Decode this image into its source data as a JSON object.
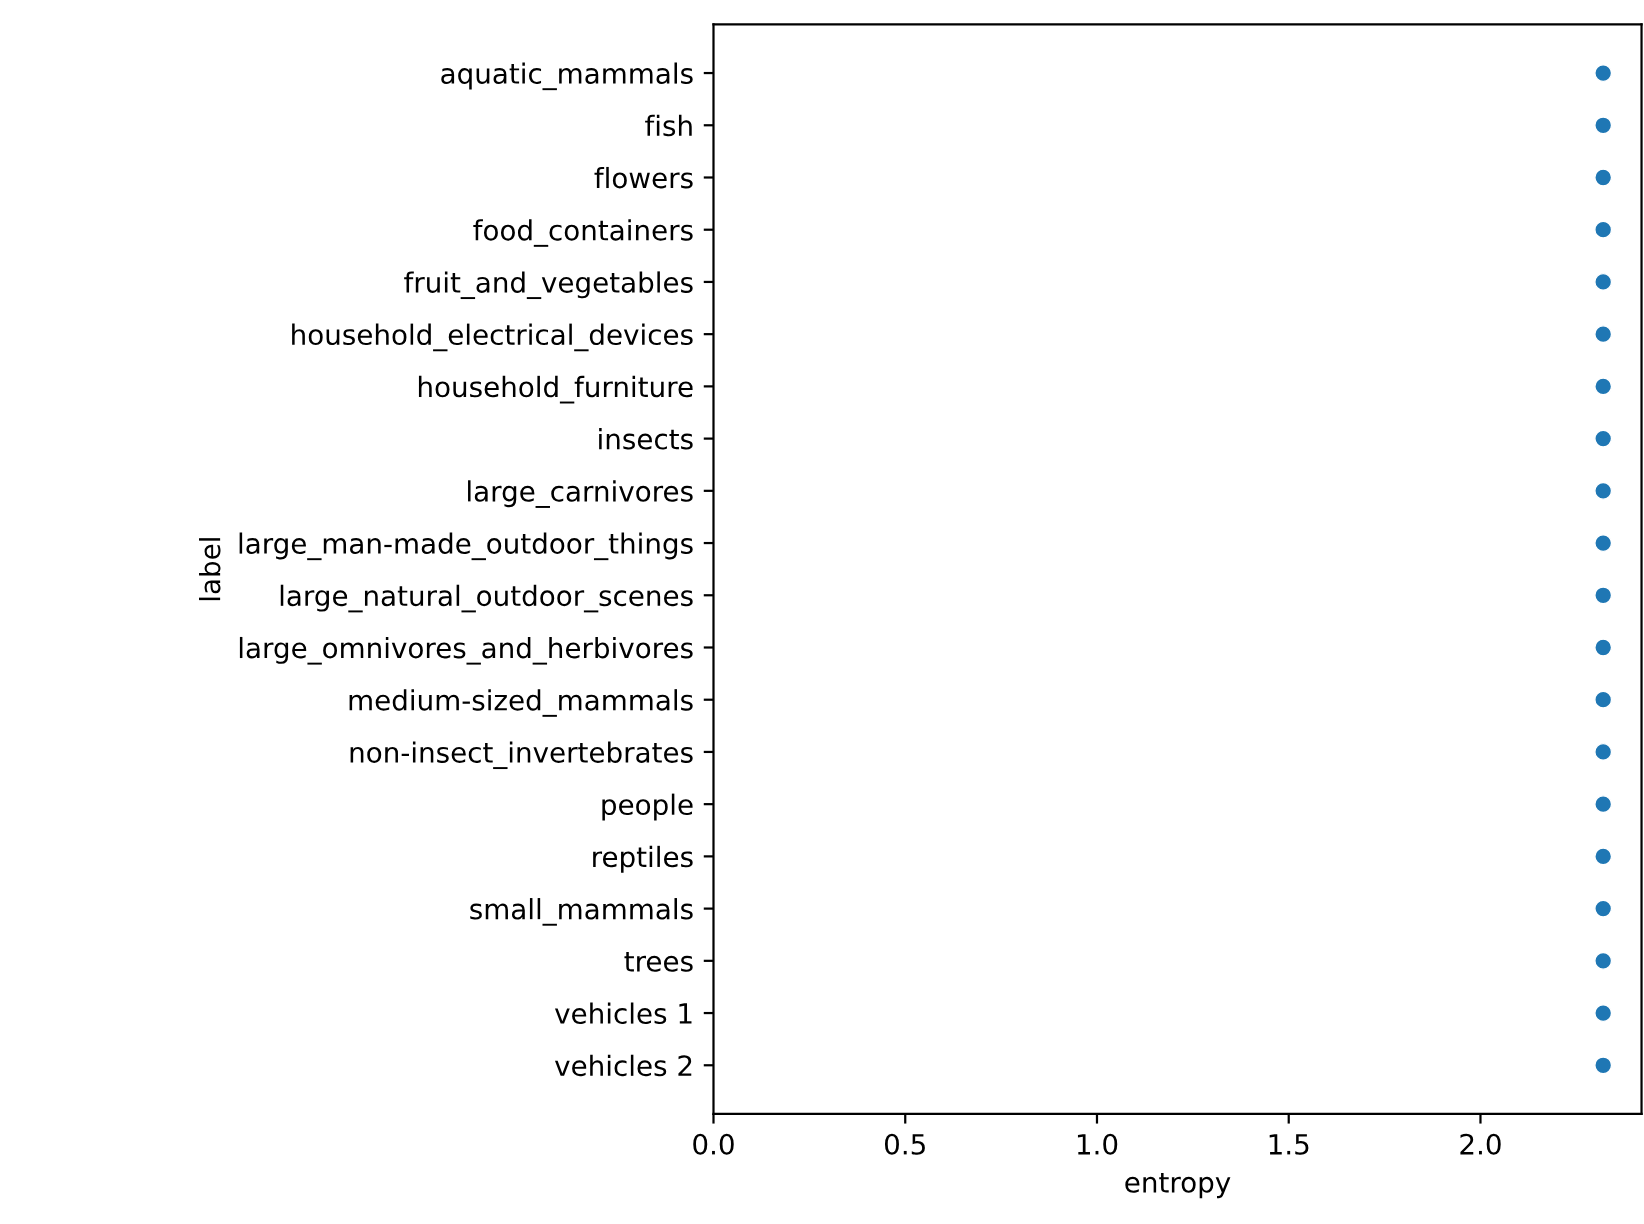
{
  "chart_data": {
    "type": "scatter",
    "orientation": "horizontal",
    "xlabel": "entropy",
    "ylabel": "label",
    "categories": [
      "aquatic_mammals",
      "fish",
      "flowers",
      "food_containers",
      "fruit_and_vegetables",
      "household_electrical_devices",
      "household_furniture",
      "insects",
      "large_carnivores",
      "large_man-made_outdoor_things",
      "large_natural_outdoor_scenes",
      "large_omnivores_and_herbivores",
      "medium-sized_mammals",
      "non-insect_invertebrates",
      "people",
      "reptiles",
      "small_mammals",
      "trees",
      "vehicles 1",
      "vehicles 2"
    ],
    "series": [
      {
        "color": "#1f77b4",
        "values": [
          2.32,
          2.32,
          2.32,
          2.32,
          2.32,
          2.32,
          2.32,
          2.32,
          2.32,
          2.32,
          2.32,
          2.32,
          2.32,
          2.32,
          2.32,
          2.32,
          2.32,
          2.32,
          2.32,
          2.32
        ]
      }
    ],
    "xlim": [
      0,
      2.42
    ],
    "xticks": [
      {
        "value": 0,
        "label": "0.0"
      },
      0.5,
      {
        "value": 1,
        "label": "1.0"
      },
      1.5,
      {
        "value": 2,
        "label": "2.0"
      }
    ],
    "grid": false,
    "legend": false,
    "marker": "circle"
  }
}
